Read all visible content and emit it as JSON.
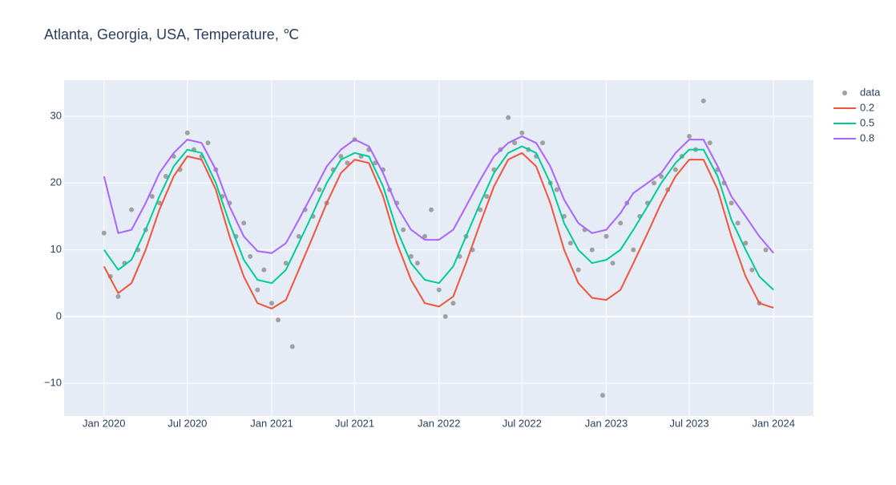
{
  "chart_data": {
    "type": "scatter-line",
    "title": "Atlanta, Georgia, USA, Temperature, ℃",
    "xlim": [
      "2019-10-06",
      "2024-03-28"
    ],
    "ylim": [
      -14.9,
      35.4
    ],
    "xticks": [
      {
        "value": "2020-01-01",
        "label": "Jan 2020"
      },
      {
        "value": "2020-07-01",
        "label": "Jul 2020"
      },
      {
        "value": "2021-01-01",
        "label": "Jan 2021"
      },
      {
        "value": "2021-07-01",
        "label": "Jul 2021"
      },
      {
        "value": "2022-01-01",
        "label": "Jan 2022"
      },
      {
        "value": "2022-07-01",
        "label": "Jul 2022"
      },
      {
        "value": "2023-01-01",
        "label": "Jan 2023"
      },
      {
        "value": "2023-07-01",
        "label": "Jul 2023"
      },
      {
        "value": "2024-01-01",
        "label": "Jan 2024"
      }
    ],
    "yticks": [
      {
        "value": -10,
        "label": "−10"
      },
      0,
      10,
      20,
      30
    ],
    "grid": true,
    "x": [
      "2020-01-01",
      "2020-02-01",
      "2020-03-01",
      "2020-04-01",
      "2020-05-01",
      "2020-06-01",
      "2020-07-01",
      "2020-08-01",
      "2020-09-01",
      "2020-10-01",
      "2020-11-01",
      "2020-12-01",
      "2021-01-01",
      "2021-02-01",
      "2021-03-01",
      "2021-04-01",
      "2021-05-01",
      "2021-06-01",
      "2021-07-01",
      "2021-08-01",
      "2021-09-01",
      "2021-10-01",
      "2021-11-01",
      "2021-12-01",
      "2022-01-01",
      "2022-02-01",
      "2022-03-01",
      "2022-04-01",
      "2022-05-01",
      "2022-06-01",
      "2022-07-01",
      "2022-08-01",
      "2022-09-01",
      "2022-10-01",
      "2022-11-01",
      "2022-12-01",
      "2023-01-01",
      "2023-02-01",
      "2023-03-01",
      "2023-04-01",
      "2023-05-01",
      "2023-06-01",
      "2023-07-01",
      "2023-08-01",
      "2023-09-01",
      "2023-10-01",
      "2023-11-01",
      "2023-12-01",
      "2024-01-01"
    ],
    "series": [
      {
        "name": "data",
        "color": "#a0a0a0",
        "mode": "markers",
        "x": [
          "2020-01-01",
          "2020-01-15",
          "2020-02-01",
          "2020-02-15",
          "2020-03-01",
          "2020-03-15",
          "2020-04-01",
          "2020-04-15",
          "2020-05-01",
          "2020-05-15",
          "2020-06-01",
          "2020-06-15",
          "2020-07-01",
          "2020-07-15",
          "2020-08-01",
          "2020-08-15",
          "2020-09-01",
          "2020-09-15",
          "2020-10-01",
          "2020-10-15",
          "2020-11-01",
          "2020-11-15",
          "2020-12-01",
          "2020-12-15",
          "2021-01-01",
          "2021-01-15",
          "2021-02-01",
          "2021-02-15",
          "2021-03-01",
          "2021-03-15",
          "2021-04-01",
          "2021-04-15",
          "2021-05-01",
          "2021-05-15",
          "2021-06-01",
          "2021-06-15",
          "2021-07-01",
          "2021-07-15",
          "2021-08-01",
          "2021-08-15",
          "2021-09-01",
          "2021-09-15",
          "2021-10-01",
          "2021-10-15",
          "2021-11-01",
          "2021-11-15",
          "2021-12-01",
          "2021-12-15",
          "2022-01-01",
          "2022-01-15",
          "2022-02-01",
          "2022-02-15",
          "2022-03-01",
          "2022-03-15",
          "2022-04-01",
          "2022-04-15",
          "2022-05-01",
          "2022-05-15",
          "2022-06-01",
          "2022-06-15",
          "2022-07-01",
          "2022-07-15",
          "2022-08-01",
          "2022-08-15",
          "2022-09-01",
          "2022-09-15",
          "2022-10-01",
          "2022-10-15",
          "2022-11-01",
          "2022-11-15",
          "2022-12-01",
          "2022-12-24",
          "2023-01-01",
          "2023-01-15",
          "2023-02-01",
          "2023-02-15",
          "2023-03-01",
          "2023-03-15",
          "2023-04-01",
          "2023-04-15",
          "2023-05-01",
          "2023-05-15",
          "2023-06-01",
          "2023-06-15",
          "2023-07-01",
          "2023-07-15",
          "2023-08-01",
          "2023-08-15",
          "2023-09-01",
          "2023-09-15",
          "2023-10-01",
          "2023-10-15",
          "2023-11-01",
          "2023-11-15",
          "2023-12-01",
          "2023-12-15"
        ],
        "values": [
          12.5,
          6,
          3,
          8,
          16,
          10,
          13,
          18,
          17,
          21,
          24,
          22,
          27.5,
          25,
          24,
          26,
          22,
          18,
          17,
          12,
          14,
          9,
          4,
          7,
          2,
          -0.5,
          8,
          -4.5,
          12,
          16,
          15,
          19,
          17,
          22,
          24,
          23,
          26.5,
          24,
          25,
          23,
          22,
          19,
          17,
          13,
          9,
          8,
          12,
          16,
          4,
          0,
          2,
          9,
          12,
          10,
          16,
          18,
          22,
          25,
          29.8,
          26,
          27.5,
          25,
          24,
          26,
          20,
          19,
          15,
          11,
          7,
          13,
          10,
          -11.8,
          12,
          8,
          14,
          17,
          10,
          15,
          17,
          20,
          21,
          19,
          22,
          24,
          27,
          25,
          32.3,
          26,
          22,
          20,
          17,
          14,
          11,
          7,
          2,
          10
        ]
      },
      {
        "name": "0.2",
        "color": "#ef553b",
        "mode": "lines",
        "values": [
          7.5,
          3.5,
          5,
          10,
          16,
          21,
          24,
          23.5,
          19,
          12,
          6,
          2,
          1.2,
          2.5,
          7,
          12,
          17,
          21.5,
          23.5,
          23,
          18,
          11,
          5.5,
          2,
          1.5,
          3,
          8,
          14,
          19.5,
          23.5,
          24.5,
          22.5,
          17,
          10,
          5,
          2.8,
          2.5,
          4,
          8,
          12.5,
          17,
          21,
          23.5,
          23.5,
          19,
          12,
          6,
          2,
          1.3
        ]
      },
      {
        "name": "0.5",
        "color": "#00cc96",
        "mode": "lines",
        "values": [
          10,
          7,
          8.5,
          13,
          18,
          22.5,
          25,
          24.5,
          20,
          14,
          8.5,
          5.5,
          5,
          7,
          11,
          15.5,
          20,
          23.5,
          24.5,
          24,
          19.5,
          13,
          8,
          5.5,
          5,
          7.5,
          12,
          17,
          21.5,
          24.5,
          25.5,
          24.5,
          20,
          14,
          10,
          8,
          8.5,
          10,
          13,
          16.5,
          20,
          23,
          25,
          25,
          21,
          14.5,
          10,
          6,
          4
        ]
      },
      {
        "name": "0.8",
        "color": "#ab63fa",
        "mode": "lines",
        "values": [
          21,
          12.5,
          13,
          17,
          21.5,
          24.5,
          26.5,
          26,
          22,
          16.5,
          12,
          9.8,
          9.5,
          11,
          14.5,
          18.5,
          22.5,
          25,
          26.5,
          25.5,
          21.5,
          16.5,
          13,
          11.5,
          11.5,
          13,
          16.5,
          20.5,
          24,
          26,
          27,
          26,
          22.5,
          17.5,
          14,
          12.5,
          13,
          15.5,
          18.5,
          20,
          21.5,
          24.5,
          26.5,
          26.5,
          22.5,
          18,
          15,
          12,
          9.5
        ]
      }
    ]
  }
}
